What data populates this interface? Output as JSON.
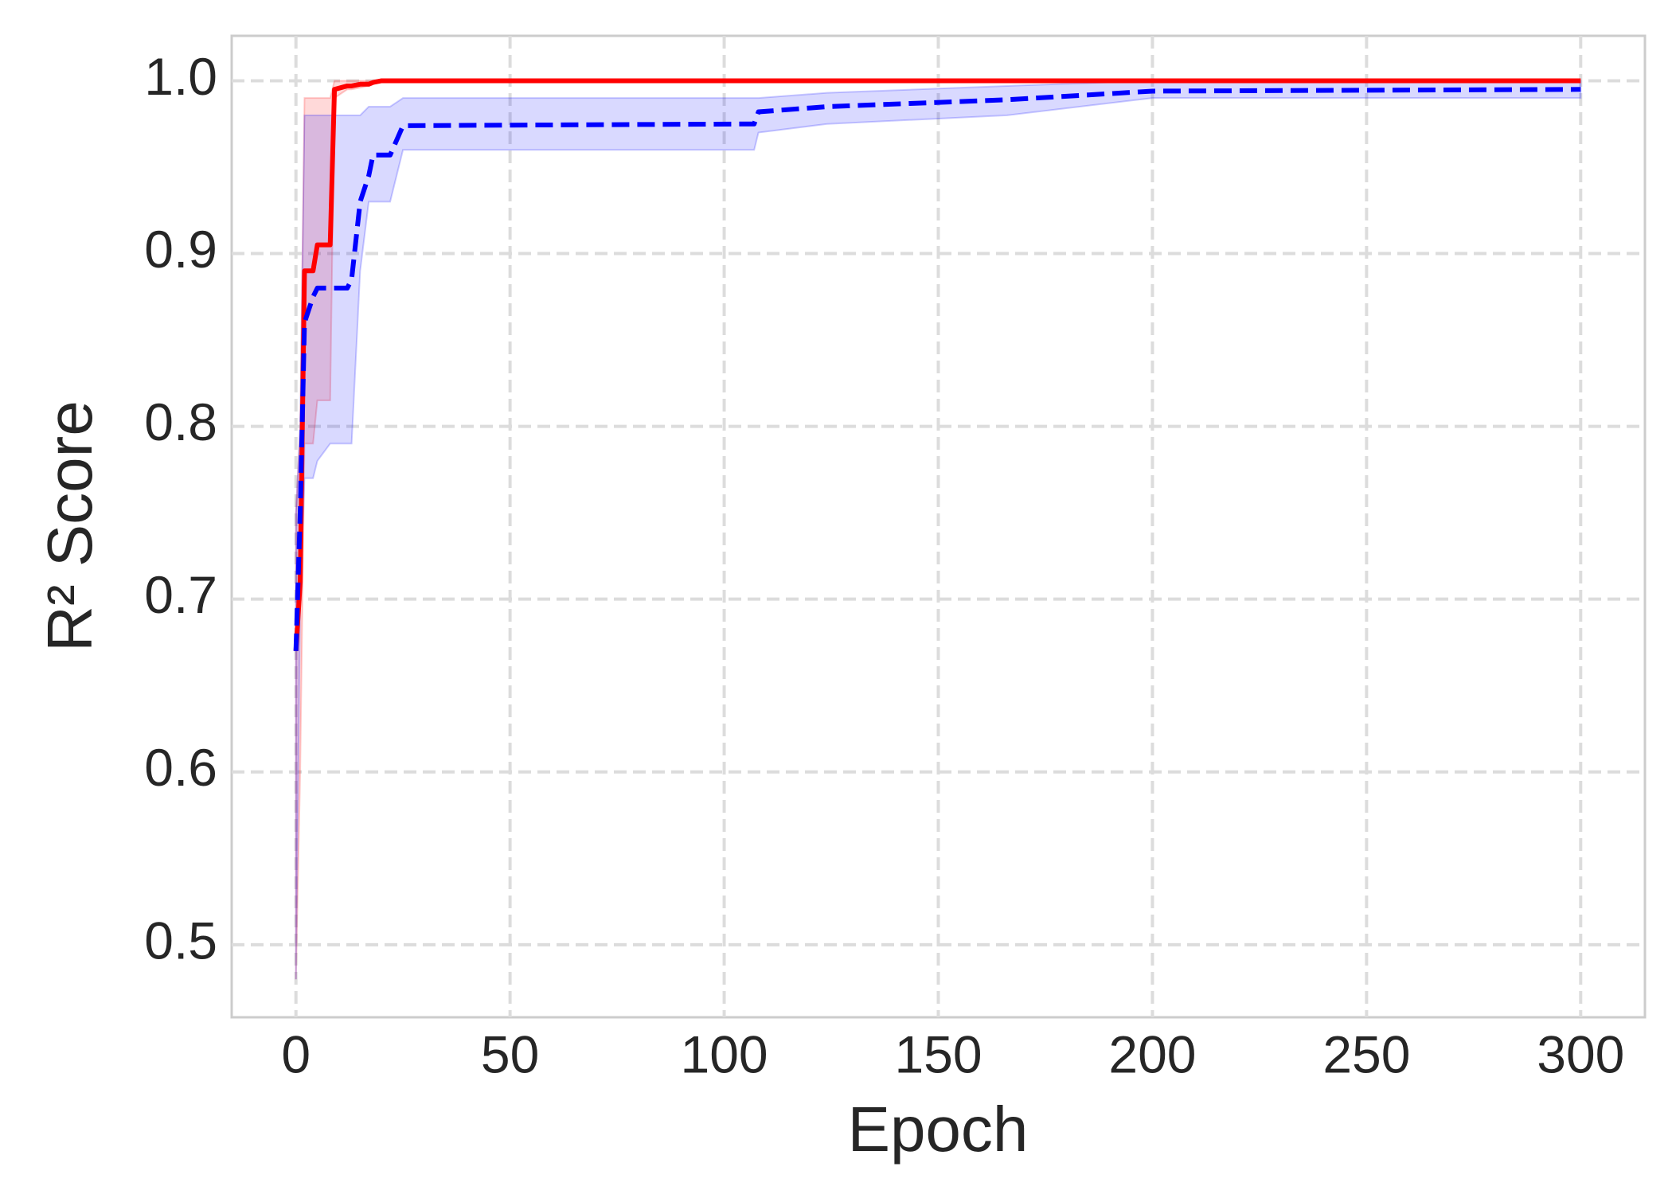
{
  "chart_data": {
    "type": "line",
    "x_label": "Epoch",
    "y_label": "R² Score",
    "x": [
      0,
      1,
      2,
      4,
      5,
      8,
      9,
      12,
      13,
      15,
      17,
      18,
      20,
      22,
      25,
      107,
      108,
      124,
      166,
      200,
      300
    ],
    "series": [
      {
        "color": "#ff0000",
        "dash": false,
        "values": [
          0.67,
          0.71,
          0.89,
          0.89,
          0.905,
          0.905,
          0.995,
          0.997,
          0.997,
          0.998,
          0.998,
          0.999,
          1.0,
          1.0,
          1.0,
          1.0,
          1.0,
          1.0,
          1.0,
          1.0,
          1.0
        ],
        "lower": [
          0.48,
          0.6,
          0.79,
          0.79,
          0.815,
          0.815,
          0.99,
          0.995,
          0.995,
          0.996,
          0.997,
          0.998,
          1.0,
          1.0,
          1.0,
          1.0,
          1.0,
          1.0,
          1.0,
          1.0,
          1.0
        ],
        "upper": [
          0.75,
          0.8,
          0.99,
          0.99,
          0.99,
          0.99,
          1.0,
          1.0,
          1.0,
          1.0,
          1.0,
          1.0,
          1.0,
          1.0,
          1.0,
          1.0,
          1.0,
          1.0,
          1.0,
          1.0,
          1.0
        ]
      },
      {
        "color": "#0000ff",
        "dash": true,
        "values": [
          0.67,
          0.75,
          0.86,
          0.875,
          0.88,
          0.88,
          0.88,
          0.88,
          0.885,
          0.93,
          0.945,
          0.957,
          0.957,
          0.957,
          0.974,
          0.975,
          0.982,
          0.985,
          0.989,
          0.994,
          0.995
        ],
        "lower": [
          0.48,
          0.7,
          0.77,
          0.77,
          0.78,
          0.79,
          0.79,
          0.79,
          0.79,
          0.89,
          0.93,
          0.93,
          0.93,
          0.93,
          0.96,
          0.96,
          0.97,
          0.975,
          0.98,
          0.99,
          0.99
        ],
        "upper": [
          0.75,
          0.8,
          0.98,
          0.98,
          0.98,
          0.98,
          0.98,
          0.98,
          0.98,
          0.98,
          0.985,
          0.985,
          0.985,
          0.985,
          0.99,
          0.99,
          0.99,
          0.993,
          0.997,
          1.0,
          1.0
        ]
      }
    ],
    "xlim": [
      -15,
      315
    ],
    "ylim": [
      0.458,
      1.026
    ],
    "xticks": [
      0,
      50,
      100,
      150,
      200,
      250,
      300
    ],
    "yticks": [
      0.5,
      0.6,
      0.7,
      0.8,
      0.9,
      {
        "value": 1,
        "label": "1.0"
      }
    ],
    "grid": true
  }
}
